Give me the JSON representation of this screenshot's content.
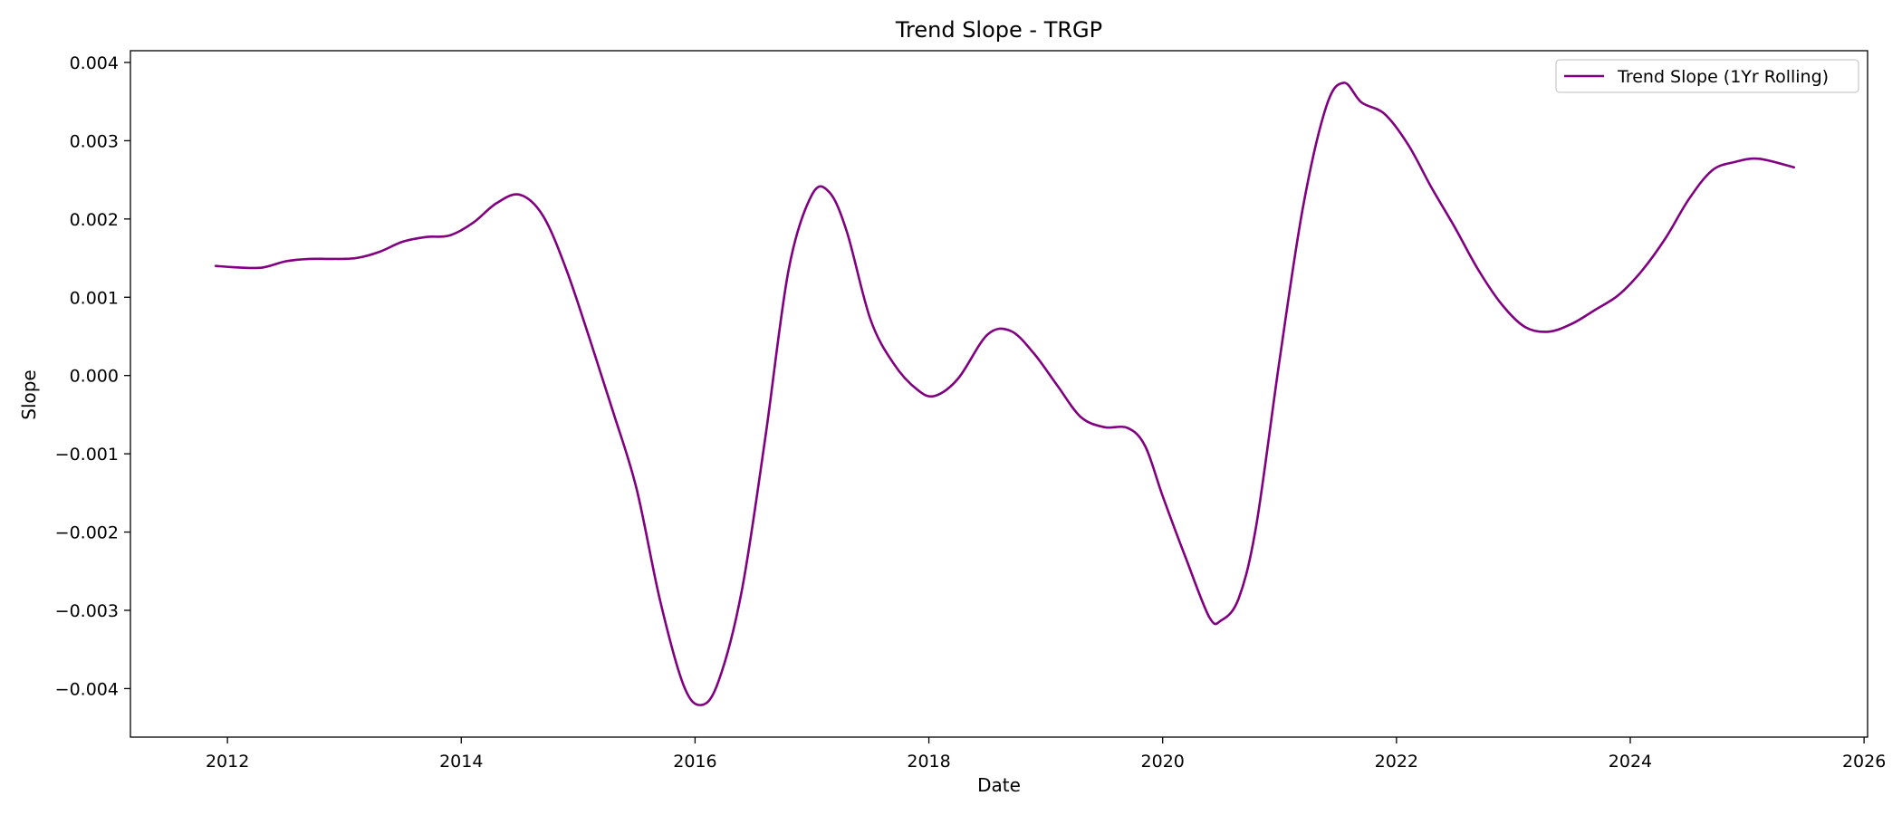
{
  "chart_data": {
    "type": "line",
    "title": "Trend Slope - TRGP",
    "xlabel": "Date",
    "ylabel": "Slope",
    "xlim": [
      2011.17,
      2026.03
    ],
    "ylim": [
      -0.00462,
      0.00415
    ],
    "x_ticks": [
      2012,
      2014,
      2016,
      2018,
      2020,
      2022,
      2024,
      2026
    ],
    "x_tick_labels": [
      "2012",
      "2014",
      "2016",
      "2018",
      "2020",
      "2022",
      "2024",
      "2026"
    ],
    "y_ticks": [
      -0.004,
      -0.003,
      -0.002,
      -0.001,
      0.0,
      0.001,
      0.002,
      0.003,
      0.004
    ],
    "y_tick_labels": [
      "−0.004",
      "−0.003",
      "−0.002",
      "−0.001",
      "0.000",
      "0.001",
      "0.002",
      "0.003",
      "0.004"
    ],
    "grid": false,
    "legend_position": "top-right",
    "series": [
      {
        "name": "Trend Slope (1Yr Rolling)",
        "color": "#800080",
        "x": [
          2011.9,
          2012.1,
          2012.3,
          2012.5,
          2012.7,
          2012.9,
          2013.1,
          2013.3,
          2013.5,
          2013.7,
          2013.9,
          2014.1,
          2014.3,
          2014.5,
          2014.7,
          2014.9,
          2015.1,
          2015.3,
          2015.5,
          2015.7,
          2015.9,
          2016.05,
          2016.2,
          2016.4,
          2016.6,
          2016.8,
          2017.0,
          2017.15,
          2017.3,
          2017.5,
          2017.7,
          2017.9,
          2018.05,
          2018.25,
          2018.5,
          2018.7,
          2018.9,
          2019.1,
          2019.3,
          2019.5,
          2019.7,
          2019.85,
          2020.0,
          2020.2,
          2020.4,
          2020.5,
          2020.65,
          2020.8,
          2021.0,
          2021.2,
          2021.4,
          2021.55,
          2021.7,
          2021.9,
          2022.1,
          2022.3,
          2022.5,
          2022.7,
          2022.9,
          2023.1,
          2023.3,
          2023.5,
          2023.7,
          2023.9,
          2024.1,
          2024.3,
          2024.5,
          2024.7,
          2024.9,
          2025.1,
          2025.4
        ],
        "values": [
          0.0014,
          0.00138,
          0.00138,
          0.00146,
          0.00149,
          0.00149,
          0.0015,
          0.00158,
          0.00171,
          0.00177,
          0.00179,
          0.00195,
          0.0022,
          0.00231,
          0.00204,
          0.00135,
          0.00046,
          -0.00047,
          -0.00145,
          -0.00287,
          -0.00395,
          -0.00421,
          -0.00391,
          -0.00275,
          -0.0008,
          0.00135,
          0.00231,
          0.00234,
          0.00183,
          0.00072,
          0.00015,
          -0.00018,
          -0.00026,
          -4e-05,
          0.00052,
          0.00057,
          0.00028,
          -0.00013,
          -0.00053,
          -0.00066,
          -0.00067,
          -0.0009,
          -0.00154,
          -0.00234,
          -0.00309,
          -0.00313,
          -0.00285,
          -0.00192,
          0.0002,
          0.00215,
          0.00344,
          0.00374,
          0.00349,
          0.00334,
          0.00295,
          0.0024,
          0.00189,
          0.00135,
          0.00091,
          0.00062,
          0.00056,
          0.00066,
          0.00084,
          0.00103,
          0.00134,
          0.00175,
          0.00225,
          0.00262,
          0.00273,
          0.00277,
          0.00266
        ]
      }
    ]
  }
}
